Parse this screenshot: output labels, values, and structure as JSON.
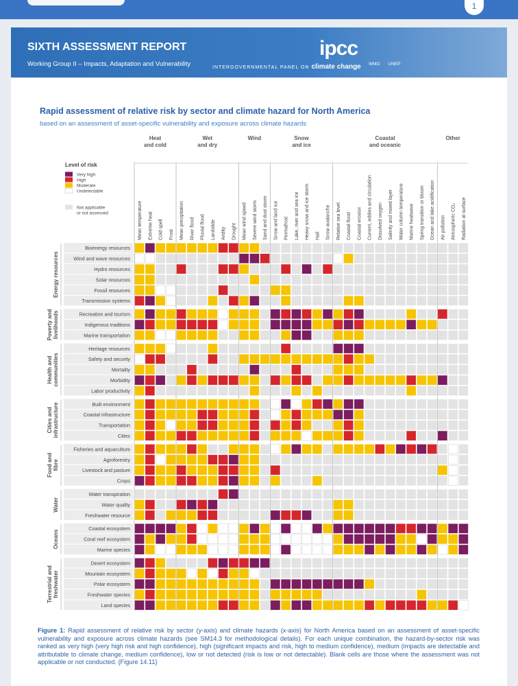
{
  "browser": {
    "page_number": "1"
  },
  "header": {
    "title": "SIXTH ASSESSMENT REPORT",
    "subtitle": "Working Group II – Impacts, Adaptation and Vulnerability",
    "logo": "ipcc",
    "org_prefix": "INTERGOVERNMENTAL PANEL ON",
    "org_name": "climate change",
    "partners": [
      "WMO",
      "UNEP"
    ]
  },
  "figure": {
    "title": "Rapid assessment of relative risk by sector and climate hazard for North America",
    "subtitle": "based on an assessment of asset-specific vulnerability and exposure across climate hazards",
    "legend_title": "Level of risk",
    "legend": [
      {
        "code": "V",
        "label": [
          "Very high"
        ],
        "color": "#7b1d5e"
      },
      {
        "code": "H",
        "label": [
          "High"
        ],
        "color": "#d5262c"
      },
      {
        "code": "M",
        "label": [
          "Moderate"
        ],
        "color": "#f6c400"
      },
      {
        "code": "U",
        "label": [
          "Undetectable"
        ],
        "color": "#ffffff"
      },
      {
        "code": "N",
        "label": [
          "Not applicable",
          "or not assessed"
        ],
        "color": "#e3e3e3"
      }
    ],
    "hazard_groups": [
      {
        "name": [
          "Heat",
          "and cold"
        ],
        "hazards": [
          "Mean temperature",
          "Extreme heat",
          "Cold spell",
          "Frost"
        ]
      },
      {
        "name": [
          "Wet",
          "and dry"
        ],
        "hazards": [
          "Mean precipitation",
          "River flood",
          "Pluvial flood",
          "Landslide",
          "Aridity",
          "Drought"
        ]
      },
      {
        "name": [
          "Wind"
        ],
        "hazards": [
          "Mean wind speed",
          "Severe wind storm",
          "Sand and dust storm"
        ]
      },
      {
        "name": [
          "Snow",
          "and ice"
        ],
        "hazards": [
          "Snow and land ice",
          "Permafrost",
          "Lake, river and sea ice",
          "Heavy snow and ice storm",
          "Hail",
          "Snow avalanche"
        ]
      },
      {
        "name": [
          "Coastal",
          "and oceanic"
        ],
        "hazards": [
          "Relative sea level",
          "Coastal flood",
          "Coastal erosion",
          "Current, eddies and circulation",
          "Dissolved oxygen",
          "Salinity and mixed layer",
          "Water column temperature",
          "Marine heatwave",
          "Spring transition or bloom",
          "Ocean and lake acidification"
        ]
      },
      {
        "name": [
          "Other"
        ],
        "hazards": [
          "Air pollution",
          "Atmospheric CO₂",
          "Radiation at surface"
        ]
      }
    ],
    "sectors": [
      {
        "name": [
          "Energy resources"
        ],
        "rows": [
          {
            "label": "Bioenergy resources",
            "cells": [
              "MVMM",
              "MMMMHH",
              "MMN",
              "NNNNNN",
              "NNNNNNNNNN",
              "NNN"
            ]
          },
          {
            "label": "Wind and wave resources",
            "cells": [
              "UUNN",
              "NNNNNN",
              "VVH",
              "NNNNNN",
              "UMNNNNNNNN",
              "NNN"
            ]
          },
          {
            "label": "Hydro resources",
            "cells": [
              "MMNN",
              "HNNNHH",
              "MNN",
              "NHNVNH",
              "NNNNNNNNNN",
              "NNN"
            ]
          },
          {
            "label": "Solar resources",
            "cells": [
              "MMNN",
              "NNNNNN",
              "NMN",
              "NNNNNN",
              "NNNNNNNNNN",
              "NNN"
            ]
          },
          {
            "label": "Fossil resources",
            "cells": [
              "MMUU",
              "NNNNHN",
              "NNN",
              "MMNNNN",
              "NNNNNNNNNN",
              "NNN"
            ]
          },
          {
            "label": "Transmission systems",
            "cells": [
              "HVMU",
              "NNNMNH",
              "MVN",
              "NMNNNN",
              "NMMNNNNNNN",
              "NNN"
            ]
          }
        ]
      },
      {
        "name": [
          "Poverty and",
          "livelihoods"
        ],
        "rows": [
          {
            "label": "Recreation and tourism",
            "cells": [
              "MVMM",
              "HMMMUM",
              "MMN",
              "VHVHMV",
              "MHVNNNNMNN",
              "HNN"
            ]
          },
          {
            "label": "Indigenous traditions",
            "cells": [
              "VHMM",
              "HHHHUM",
              "MMN",
              "VVVVMM",
              "HVHMMMMVMM",
              "NNN"
            ]
          },
          {
            "label": "Marine transportation",
            "cells": [
              "MMUU",
              "MMMMNN",
              "MMN",
              "NMVVNN",
              "MMMNNNNNNN",
              "NNN"
            ]
          }
        ]
      },
      {
        "name": [
          "Health and",
          "communities"
        ],
        "rows": [
          {
            "label": "Heritage resources",
            "cells": [
              "MMMU",
              "NNNMNN",
              "NNN",
              "NHNNNN",
              "VVVNNNNNNN",
              "NNN"
            ]
          },
          {
            "label": "Safety and security",
            "cells": [
              "UHHN",
              "NNNHNN",
              "MMM",
              "MMMMMM",
              "MHMMNNNNNN",
              "NNN"
            ]
          },
          {
            "label": "Mortality",
            "cells": [
              "MMNN",
              "NHNNNN",
              "NVN",
              "NNHNNN",
              "MMMNNNNNNN",
              "NNN"
            ]
          },
          {
            "label": "Morbidity",
            "cells": [
              "VHVN",
              "MHMHHH",
              "MMN",
              "HMHHNM",
              "MHMMMMMHMM",
              "VNN"
            ]
          },
          {
            "label": "Labor productivity",
            "cells": [
              "MHNN",
              "NNNNNN",
              "NMN",
              "NNMNMN",
              "NNNNNNNMNN",
              "NNN"
            ]
          }
        ]
      },
      {
        "name": [
          "Cities and",
          "infrastructure"
        ],
        "rows": [
          {
            "label": "Built environment",
            "cells": [
              "MHMM",
              "MMMMMM",
              "MMN",
              "UVUMHV",
              "MVVNNNNNNN",
              "NNN"
            ]
          },
          {
            "label": "Coastal infrastructure",
            "cells": [
              "MHMM",
              "MMHHMM",
              "MHN",
              "UMHMMM",
              "VVMNNNNNNN",
              "NNN"
            ]
          },
          {
            "label": "Transportation",
            "cells": [
              "MHMU",
              "MMHHMM",
              "MHN",
              "HMHMNN",
              "MHMNNNNNNN",
              "NNN"
            ]
          },
          {
            "label": "Cities",
            "cells": [
              "MHMM",
              "HHMMMM",
              "MHN",
              "MMMUMM",
              "MHMNNNNHNN",
              "VNN"
            ]
          }
        ]
      },
      {
        "name": [
          "Food and",
          "fibre"
        ],
        "rows": [
          {
            "label": "Fisheries and aquaculture",
            "cells": [
              "MHMM",
              "MHMNNM",
              "MMN",
              "UMVMMN",
              "MMMMHMVHVH",
              "NUN"
            ]
          },
          {
            "label": "Agroforestry",
            "cells": [
              "MHUM",
              "MMMHHV",
              "MMN",
              "NNNNNN",
              "NNNNNNNNNN",
              "NUN"
            ]
          },
          {
            "label": "Livestock and pasture",
            "cells": [
              "MHMM",
              "HMMMHH",
              "MMN",
              "HNNNNN",
              "NNNNNNNNNN",
              "MUN"
            ]
          },
          {
            "label": "Crops",
            "cells": [
              "VHMM",
              "HHMMHV",
              "MMN",
              "MNNNMN",
              "NNNNNNNNNN",
              "NUN"
            ]
          }
        ]
      },
      {
        "name": [
          "Water"
        ],
        "rows": [
          {
            "label": "Water transpiration",
            "cells": [
              "NNNN",
              "NNNNHV",
              "NNN",
              "NNNNNN",
              "NNNNNNNNNN",
              "NNN"
            ]
          },
          {
            "label": "Water quality",
            "cells": [
              "MHNN",
              "HVHVNN",
              "NNN",
              "NNNNNN",
              "MMNNNNNNNN",
              "NNN"
            ]
          },
          {
            "label": "Freshwater resource",
            "cells": [
              "MHNM",
              "MMHHNN",
              "NNN",
              "VHHVNN",
              "MMNNNNNNNN",
              "NNN"
            ]
          }
        ]
      },
      {
        "name": [
          "Oceans"
        ],
        "rows": [
          {
            "label": "Coastal ecosystem",
            "cells": [
              "VVVV",
              "MHUMUU",
              "MVM",
              "UVUUVM",
              "VVVVVVHHVV",
              "MVV"
            ]
          },
          {
            "label": "Coral reef ecosystem",
            "cells": [
              "VMVM",
              "MHUUUU",
              "MMM",
              "UUUUUU",
              "MVVVVVMMUV",
              "MMV"
            ]
          },
          {
            "label": "Marine species",
            "cells": [
              "VMUU",
              "MMMUUU",
              "MMM",
              "UVUUUU",
              "MMMVMVMMVM",
              "UMV"
            ]
          }
        ]
      },
      {
        "name": [
          "Terrestrial and",
          "freshwater"
        ],
        "rows": [
          {
            "label": "Desert ecosystem",
            "cells": [
              "VHMN",
              "NNNHVH",
              "HVV",
              "NNNNNN",
              "NNNNNNNNNN",
              "NNN"
            ]
          },
          {
            "label": "Mountain ecosystem",
            "cells": [
              "MHMM",
              "MUMUHM",
              "MUN",
              "NNNNNN",
              "NNNNNNNNNN",
              "NNN"
            ]
          },
          {
            "label": "Polar ecosystem",
            "cells": [
              "VVMM",
              "MMMMMM",
              "MMN",
              "VVVVVV",
              "VVVMNNNNNN",
              "NNN"
            ]
          },
          {
            "label": "Freshwater species",
            "cells": [
              "MHMM",
              "MMMMMM",
              "MMN",
              "MMMMMN",
              "NNNNNNNNMN",
              "NNN"
            ]
          },
          {
            "label": "Land species",
            "cells": [
              "VVMM",
              "MMMMHH",
              "MMN",
              "VMVVMM",
              "MMMHMHHHHM",
              "MHU"
            ]
          }
        ]
      }
    ],
    "caption": {
      "label": "Figure 1:",
      "text": "Rapid assessment of relative risk by sector (y-axis) and climate hazards (x-axis) for North America based on an assessment of asset-specific vulnerability and exposure across climate hazards (see SM14.3 for methodological details). For each unique combination, the hazard-by-sector risk was ranked as very high (very high risk and high confidence), high (significant impacts and risk, high to medium confidence), medium (impacts are detectable and attributable to climate change, medium confidence), low or not detected (risk is low or not detectable). Blank cells are those where the assessment was not applicable or not conducted. {Figure 14.11}"
    }
  }
}
